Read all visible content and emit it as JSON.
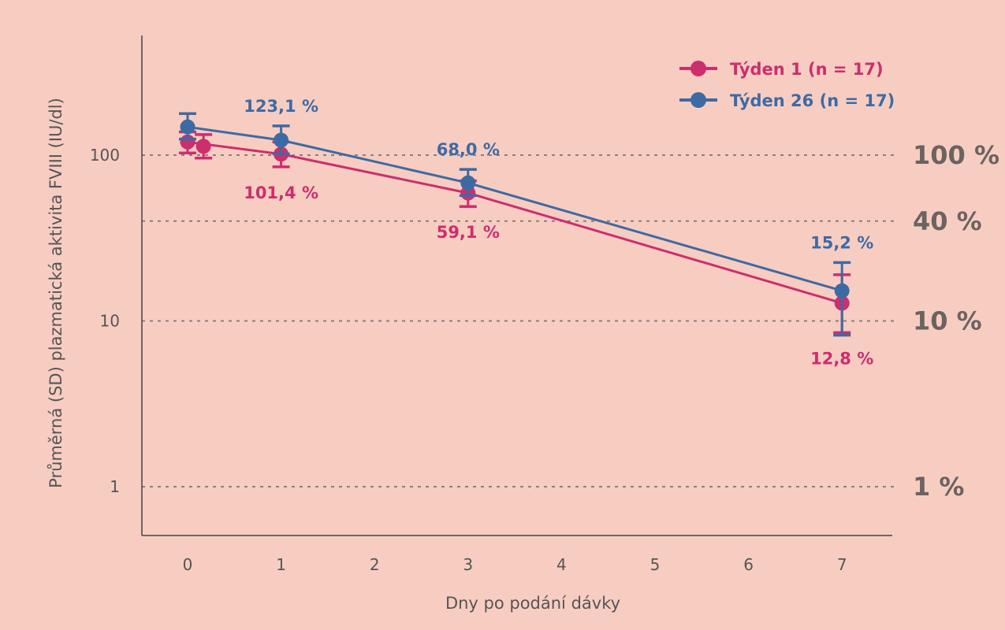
{
  "chart_data": {
    "type": "line",
    "xlabel": "Dny po podání dávky",
    "ylabel": "Průměrná (SD) plazmatická aktivita FVIII (IU/dl)",
    "xlim": [
      -0.5,
      8.2
    ],
    "ylim": [
      0.5,
      700
    ],
    "y_scale": "log",
    "x_ticks": [
      "0",
      "1",
      "2",
      "3",
      "4",
      "5",
      "6",
      "7"
    ],
    "y_ticks": [
      {
        "value": 1,
        "label": "1"
      },
      {
        "value": 10,
        "label": "10"
      },
      {
        "value": 100,
        "label": "100"
      }
    ],
    "reference_lines": [
      {
        "value": 100,
        "label": "100 %"
      },
      {
        "value": 40,
        "label": "40 %"
      },
      {
        "value": 10,
        "label": "10 %"
      },
      {
        "value": 1,
        "label": "1 %"
      }
    ],
    "legend_position": "top-right",
    "series": [
      {
        "name": "Týden 1 (n = 17)",
        "color": "#cc2e6e",
        "points": [
          {
            "x": 0,
            "y": 120,
            "lo": 103,
            "hi": 138
          },
          {
            "x": 0.17,
            "y": 113,
            "lo": 96,
            "hi": 133
          },
          {
            "x": 1,
            "y": 101.4,
            "lo": 85,
            "hi": 120,
            "label": "101,4 %"
          },
          {
            "x": 3,
            "y": 59.1,
            "lo": 49,
            "hi": 70,
            "label": "59,1 %"
          },
          {
            "x": 7,
            "y": 12.8,
            "lo": 8.5,
            "hi": 19,
            "label": "12,8 %"
          }
        ]
      },
      {
        "name": "Týden 26 (n = 17)",
        "color": "#3e6aa4",
        "points": [
          {
            "x": 0,
            "y": 148,
            "lo": 125,
            "hi": 178
          },
          {
            "x": 1,
            "y": 123.1,
            "lo": 102,
            "hi": 150,
            "label": "123,1 %"
          },
          {
            "x": 3,
            "y": 68.0,
            "lo": 57,
            "hi": 82,
            "label": "68,0 %"
          },
          {
            "x": 7,
            "y": 15.2,
            "lo": 8.2,
            "hi": 22.5,
            "label": "15,2 %"
          }
        ]
      }
    ]
  }
}
